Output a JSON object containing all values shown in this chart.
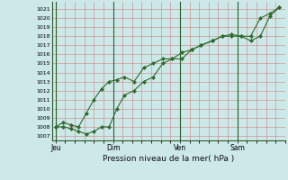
{
  "bg_color": "#cce8e8",
  "grid_color": "#d08080",
  "line_color": "#2d6a2d",
  "marker_color": "#2d6a2d",
  "ylabel_ticks": [
    1007,
    1008,
    1009,
    1010,
    1011,
    1012,
    1013,
    1014,
    1015,
    1016,
    1017,
    1018,
    1019,
    1020,
    1021
  ],
  "ylim": [
    1006.5,
    1021.8
  ],
  "xlabel": "Pression niveau de la mer( hPa )",
  "day_labels": [
    "Jeu",
    "Dim",
    "Ven",
    "Sam"
  ],
  "day_positions": [
    0.0,
    3.0,
    6.5,
    9.5
  ],
  "vline_positions": [
    0.0,
    3.0,
    6.5,
    9.5
  ],
  "xlim": [
    -0.2,
    12.0
  ],
  "series1_x": [
    0.0,
    0.4,
    0.8,
    1.2,
    1.6,
    2.0,
    2.4,
    2.8,
    3.2,
    3.6,
    4.1,
    4.6,
    5.1,
    5.6,
    6.1,
    6.6,
    7.1,
    7.6,
    8.2,
    8.7,
    9.2,
    9.7,
    10.2,
    10.7,
    11.2,
    11.7
  ],
  "series1_y": [
    1008.0,
    1008.5,
    1008.2,
    1008.0,
    1009.5,
    1011.0,
    1012.2,
    1013.0,
    1013.2,
    1013.5,
    1013.0,
    1014.5,
    1015.0,
    1015.5,
    1015.5,
    1016.2,
    1016.5,
    1017.0,
    1017.5,
    1018.0,
    1018.2,
    1018.0,
    1017.5,
    1018.0,
    1020.2,
    1021.2
  ],
  "series2_x": [
    0.0,
    0.4,
    0.8,
    1.2,
    1.6,
    2.0,
    2.4,
    2.8,
    3.2,
    3.6,
    4.1,
    4.6,
    5.1,
    5.6,
    6.1,
    6.6,
    7.1,
    7.6,
    8.2,
    8.7,
    9.2,
    9.7,
    10.2,
    10.7,
    11.2,
    11.7
  ],
  "series2_y": [
    1008.0,
    1008.0,
    1007.8,
    1007.5,
    1007.2,
    1007.5,
    1008.0,
    1008.0,
    1010.0,
    1011.5,
    1012.0,
    1013.0,
    1013.5,
    1015.0,
    1015.5,
    1015.5,
    1016.5,
    1017.0,
    1017.5,
    1018.0,
    1018.0,
    1018.0,
    1018.0,
    1020.0,
    1020.5,
    1021.2
  ]
}
